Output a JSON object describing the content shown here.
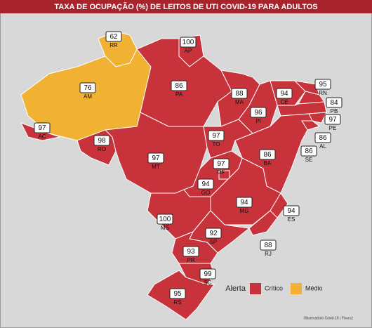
{
  "header": {
    "title": "TAXA DE OCUPAÇÃO (%) DE LEITOS DE UTI COVID-19 PARA ADULTOS"
  },
  "states": [
    {
      "code": "RR",
      "value": 62,
      "color": "#f1b132"
    },
    {
      "code": "AP",
      "value": 100,
      "color": "#c8323b"
    },
    {
      "code": "AM",
      "value": 76,
      "color": "#f1b132"
    },
    {
      "code": "PA",
      "value": 86,
      "color": "#c8323b"
    },
    {
      "code": "AC",
      "value": 97,
      "color": "#c8323b"
    },
    {
      "code": "RO",
      "value": 98,
      "color": "#c8323b"
    },
    {
      "code": "MT",
      "value": 97,
      "color": "#c8323b"
    },
    {
      "code": "MA",
      "value": 88,
      "color": "#c8323b"
    },
    {
      "code": "PI",
      "value": 96,
      "color": "#c8323b"
    },
    {
      "code": "CE",
      "value": 94,
      "color": "#c8323b"
    },
    {
      "code": "RN",
      "value": 95,
      "color": "#c8323b"
    },
    {
      "code": "PB",
      "value": 84,
      "color": "#c8323b"
    },
    {
      "code": "PE",
      "value": 97,
      "color": "#c8323b"
    },
    {
      "code": "AL",
      "value": 86,
      "color": "#c8323b"
    },
    {
      "code": "SE",
      "value": 86,
      "color": "#c8323b"
    },
    {
      "code": "BA",
      "value": 86,
      "color": "#c8323b"
    },
    {
      "code": "TO",
      "value": 97,
      "color": "#c8323b"
    },
    {
      "code": "GO",
      "value": 94,
      "color": "#c8323b"
    },
    {
      "code": "DF",
      "value": 97,
      "color": "#c8323b"
    },
    {
      "code": "MG",
      "value": 94,
      "color": "#c8323b"
    },
    {
      "code": "ES",
      "value": 94,
      "color": "#c8323b"
    },
    {
      "code": "MS",
      "value": 100,
      "color": "#c8323b"
    },
    {
      "code": "SP",
      "value": 92,
      "color": "#c8323b"
    },
    {
      "code": "RJ",
      "value": 88,
      "color": "#c8323b"
    },
    {
      "code": "PR",
      "value": 93,
      "color": "#c8323b"
    },
    {
      "code": "SC",
      "value": 99,
      "color": "#c8323b"
    },
    {
      "code": "RS",
      "value": 95,
      "color": "#c8323b"
    }
  ],
  "legend": {
    "title": "Alerta",
    "items": [
      {
        "label": "Crítico",
        "color": "#c8323b"
      },
      {
        "label": "Médio",
        "color": "#f1b132"
      }
    ]
  },
  "source": "Observatório Covid-19 | Fiocruz"
}
